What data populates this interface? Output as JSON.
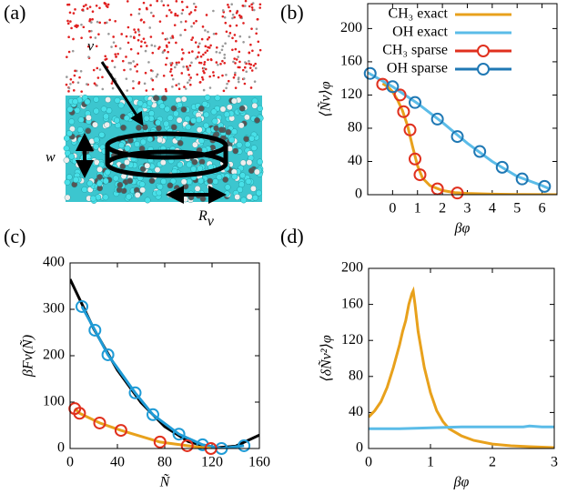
{
  "image_panel": {
    "label": "(a)",
    "labels": [
      "v",
      "w"
    ],
    "radius_label": {
      "text": "R",
      "subscript": "v"
    }
  },
  "chart_data": [
    {
      "type": "line",
      "label": "(b)",
      "xlabel": "βφ",
      "ylabel": "⟨Ñv⟩φ",
      "xlim": [
        -1,
        6.6
      ],
      "ylim": [
        0,
        230
      ],
      "xticks": [
        0,
        1,
        2,
        3,
        4,
        5,
        6
      ],
      "yticks": [
        0,
        40,
        80,
        120,
        160,
        200
      ],
      "legend": "upper right",
      "series": [
        {
          "name": "CH₃ exact",
          "color": "#e8a11c",
          "style": "line",
          "x": [
            -0.4,
            -0.2,
            0,
            0.2,
            0.4,
            0.6,
            0.8,
            1.0,
            1.2,
            1.5,
            2,
            2.5,
            3,
            4,
            5,
            6,
            6.6
          ],
          "values": [
            134,
            130,
            124,
            114,
            101,
            83,
            58,
            35,
            20,
            11,
            5,
            2.5,
            1.5,
            0.7,
            0.3,
            0.1,
            0
          ]
        },
        {
          "name": "OH exact",
          "color": "#5bbce8",
          "style": "line",
          "x": [
            -1,
            0,
            1,
            2,
            3,
            4,
            5,
            6,
            6.3
          ],
          "values": [
            147,
            130,
            110,
            87,
            62,
            40,
            22,
            11,
            7
          ]
        },
        {
          "name": "CH₃ sparse",
          "color": "#e0301e",
          "style": "markers",
          "x": [
            -0.4,
            0.3,
            0.44,
            0.7,
            0.9,
            1.1,
            1.8,
            2.6
          ],
          "values": [
            133,
            120,
            100,
            78,
            43,
            24,
            7,
            2
          ]
        },
        {
          "name": "OH sparse",
          "color": "#1f78b4",
          "style": "markers",
          "x": [
            -0.9,
            0,
            0.9,
            1.8,
            2.6,
            3.5,
            4.4,
            5.2,
            6.1
          ],
          "values": [
            146,
            130,
            111,
            91,
            70,
            52,
            33,
            19,
            10
          ]
        }
      ]
    },
    {
      "type": "line",
      "label": "(c)",
      "xlabel": "Ñ",
      "ylabel": "βFv(Ñ)",
      "xlim": [
        0,
        160
      ],
      "ylim": [
        0,
        400
      ],
      "xticks": [
        0,
        40,
        80,
        120,
        160
      ],
      "yticks": [
        0,
        100,
        200,
        300,
        400
      ],
      "series": [
        {
          "color": "#000000",
          "style": "line",
          "x": [
            0,
            20,
            40,
            60,
            80,
            100,
            120,
            140,
            160
          ],
          "values": [
            365,
            258,
            169,
            99,
            47,
            15,
            1,
            5,
            29
          ]
        },
        {
          "color": "#1f9bd6",
          "style": "line+markers",
          "x": [
            10,
            21,
            32,
            55,
            70,
            92,
            112,
            128,
            147
          ],
          "values": [
            306,
            255,
            202,
            120,
            73,
            31,
            8,
            0,
            6
          ]
        },
        {
          "color": "#e0301e",
          "line_color": "#e8a11c",
          "style": "line+markers",
          "x": [
            4,
            8,
            25,
            43,
            76,
            99,
            119
          ],
          "values": [
            86,
            76,
            55,
            39,
            14,
            6,
            0
          ]
        }
      ]
    },
    {
      "type": "line",
      "label": "(d)",
      "xlabel": "βφ",
      "ylabel": "⟨δÑv²⟩φ",
      "xlim": [
        0,
        3
      ],
      "ylim": [
        0,
        200
      ],
      "xticks": [
        0,
        1,
        2,
        3
      ],
      "yticks": [
        0,
        40,
        80,
        120,
        160,
        200
      ],
      "series": [
        {
          "color": "#e8a11c",
          "style": "line",
          "x": [
            0,
            0.1,
            0.2,
            0.3,
            0.4,
            0.5,
            0.55,
            0.6,
            0.65,
            0.7,
            0.72,
            0.75,
            0.8,
            0.9,
            1.0,
            1.1,
            1.2,
            1.3,
            1.5,
            1.7,
            2.0,
            2.3,
            2.6,
            3.0
          ],
          "values": [
            35,
            42,
            52,
            68,
            90,
            115,
            130,
            142,
            160,
            172,
            175,
            160,
            130,
            90,
            62,
            42,
            30,
            22,
            14,
            9,
            5,
            3,
            2,
            1
          ]
        },
        {
          "color": "#5bbce8",
          "style": "line",
          "x": [
            0,
            0.5,
            1,
            1.5,
            2,
            2.5,
            2.6,
            2.8,
            3
          ],
          "values": [
            22,
            22,
            23,
            24,
            24,
            24,
            25,
            24,
            24
          ]
        }
      ]
    }
  ]
}
